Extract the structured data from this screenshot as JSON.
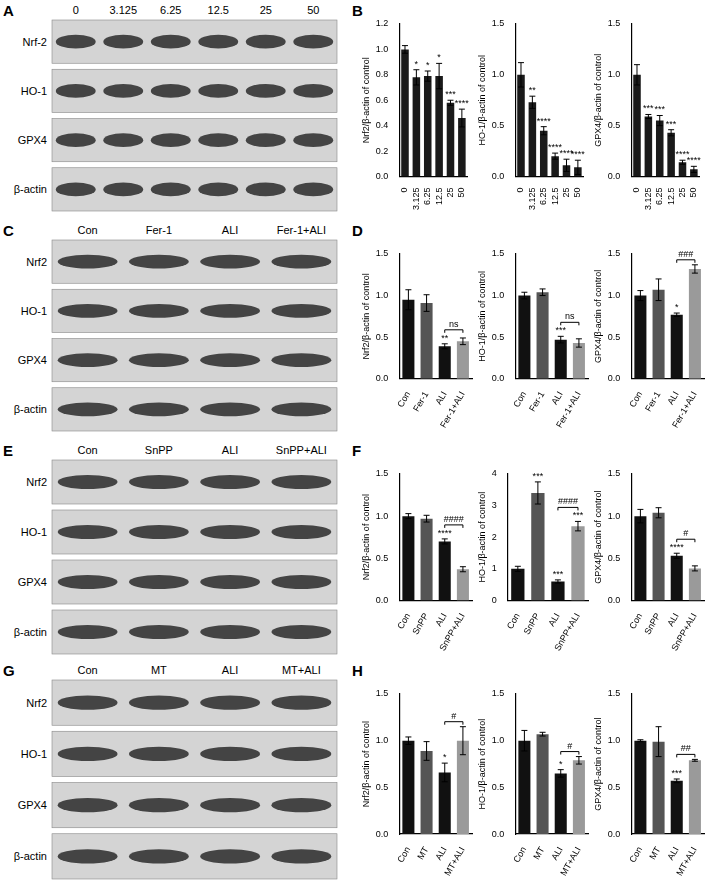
{
  "blots": [
    {
      "panel": "A",
      "lanes": [
        "0",
        "3.125",
        "6.25",
        "12.5",
        "25",
        "50"
      ],
      "proteins": [
        "Nrf-2",
        "HO-1",
        "GPX4",
        "β-actin"
      ]
    },
    {
      "panel": "C",
      "lanes": [
        "Con",
        "Fer-1",
        "ALI",
        "Fer-1+ALI"
      ],
      "proteins": [
        "Nrf2",
        "HO-1",
        "GPX4",
        "β-actin"
      ]
    },
    {
      "panel": "E",
      "lanes": [
        "Con",
        "SnPP",
        "ALI",
        "SnPP+ALI"
      ],
      "proteins": [
        "Nrf2",
        "HO-1",
        "GPX4",
        "β-actin"
      ]
    },
    {
      "panel": "G",
      "lanes": [
        "Con",
        "MT",
        "ALI",
        "MT+ALI"
      ],
      "proteins": [
        "Nrf2",
        "HO-1",
        "GPX4",
        "β-actin"
      ]
    }
  ],
  "chart_data": [
    {
      "panel": "B",
      "type": "bar",
      "ylabel": "Nrf2/β-actin of control",
      "categories": [
        "0",
        "3.125",
        "6.25",
        "12.5",
        "25",
        "50"
      ],
      "values": [
        1.0,
        0.78,
        0.79,
        0.79,
        0.58,
        0.46
      ],
      "errors": [
        0.03,
        0.06,
        0.04,
        0.1,
        0.02,
        0.07
      ],
      "significance": [
        null,
        "*",
        "*",
        "*",
        "***",
        "****"
      ],
      "colors": [
        "#1a1a1a",
        "#1a1a1a",
        "#1a1a1a",
        "#1a1a1a",
        "#1a1a1a",
        "#1a1a1a"
      ],
      "ylim": [
        0,
        1.2
      ],
      "yticks": [
        {
          "value": 0,
          "label": "0.0"
        },
        0.2,
        0.4,
        0.6,
        0.8,
        {
          "value": 1,
          "label": "1.0"
        },
        1.2
      ],
      "grid": false
    },
    {
      "type": "bar",
      "ylabel": "HO-1/β-actin of control",
      "categories": [
        "0",
        "3.125",
        "6.25",
        "12.5",
        "25",
        "50"
      ],
      "values": [
        1.0,
        0.73,
        0.45,
        0.2,
        0.11,
        0.09
      ],
      "errors": [
        0.12,
        0.06,
        0.04,
        0.03,
        0.06,
        0.07
      ],
      "significance": [
        null,
        "**",
        "****",
        "****",
        "****",
        "****"
      ],
      "colors": [
        "#1a1a1a",
        "#1a1a1a",
        "#1a1a1a",
        "#1a1a1a",
        "#1a1a1a",
        "#1a1a1a"
      ],
      "ylim": [
        0,
        1.5
      ],
      "yticks": [
        {
          "value": 0,
          "label": "0.0"
        },
        0.5,
        {
          "value": 1,
          "label": "1.0"
        },
        1.5
      ],
      "grid": false
    },
    {
      "type": "bar",
      "ylabel": "GPX4/β-actin of control",
      "categories": [
        "0",
        "3.125",
        "6.25",
        "12.5",
        "25",
        "50"
      ],
      "values": [
        1.0,
        0.59,
        0.55,
        0.43,
        0.14,
        0.07
      ],
      "errors": [
        0.1,
        0.02,
        0.05,
        0.03,
        0.02,
        0.03
      ],
      "significance": [
        null,
        "***",
        "***",
        "***",
        "****",
        "****"
      ],
      "colors": [
        "#1a1a1a",
        "#1a1a1a",
        "#1a1a1a",
        "#1a1a1a",
        "#1a1a1a",
        "#1a1a1a"
      ],
      "ylim": [
        0,
        1.5
      ],
      "yticks": [
        {
          "value": 0,
          "label": "0.0"
        },
        0.5,
        {
          "value": 1,
          "label": "1.0"
        },
        1.5
      ],
      "grid": false
    },
    {
      "panel": "D",
      "type": "bar",
      "ylabel": "Nrf2/β-actin of control",
      "categories": [
        "Con",
        "Fer-1",
        "ALI",
        "Fer-1+ALI"
      ],
      "values": [
        0.95,
        0.91,
        0.39,
        0.45
      ],
      "errors": [
        0.12,
        0.1,
        0.03,
        0.04
      ],
      "significance": [
        null,
        null,
        "**",
        null
      ],
      "comparisons": [
        {
          "from": 2,
          "to": 3,
          "label": "ns"
        }
      ],
      "colors": [
        "#111111",
        "#555555",
        "#111111",
        "#9a9a9a"
      ],
      "ylim": [
        0,
        1.5
      ],
      "yticks": [
        {
          "value": 0,
          "label": "0.0"
        },
        0.5,
        {
          "value": 1,
          "label": "1.0"
        },
        1.5
      ],
      "grid": false
    },
    {
      "type": "bar",
      "ylabel": "HO-1/β-actin of control",
      "categories": [
        "Con",
        "Fer-1",
        "ALI",
        "Fer-1+ALI"
      ],
      "values": [
        1.0,
        1.04,
        0.47,
        0.43
      ],
      "errors": [
        0.04,
        0.04,
        0.04,
        0.05
      ],
      "significance": [
        null,
        null,
        "***",
        null
      ],
      "comparisons": [
        {
          "from": 2,
          "to": 3,
          "label": "ns"
        }
      ],
      "colors": [
        "#111111",
        "#555555",
        "#111111",
        "#9a9a9a"
      ],
      "ylim": [
        0,
        1.5
      ],
      "yticks": [
        {
          "value": 0,
          "label": "0.0"
        },
        0.5,
        {
          "value": 1,
          "label": "1.0"
        },
        1.5
      ],
      "grid": false
    },
    {
      "type": "bar",
      "ylabel": "GPX4/β-actin of control",
      "categories": [
        "Con",
        "Fer-1",
        "ALI",
        "Fer-1+ALI"
      ],
      "values": [
        1.0,
        1.07,
        0.77,
        1.32
      ],
      "errors": [
        0.06,
        0.13,
        0.02,
        0.05
      ],
      "significance": [
        null,
        null,
        "*",
        null
      ],
      "comparisons": [
        {
          "from": 2,
          "to": 3,
          "label": "###"
        }
      ],
      "colors": [
        "#111111",
        "#555555",
        "#111111",
        "#9a9a9a"
      ],
      "ylim": [
        0,
        1.5
      ],
      "yticks": [
        {
          "value": 0,
          "label": "0.0"
        },
        0.5,
        {
          "value": 1,
          "label": "1.0"
        },
        1.5
      ],
      "grid": false
    },
    {
      "panel": "F",
      "type": "bar",
      "ylabel": "Nrf2/β-actin of control",
      "categories": [
        "Con",
        "SnPP",
        "ALI",
        "SnPP+ALI"
      ],
      "values": [
        1.0,
        0.97,
        0.7,
        0.37
      ],
      "errors": [
        0.03,
        0.04,
        0.03,
        0.03
      ],
      "significance": [
        null,
        null,
        "****",
        null
      ],
      "comparisons": [
        {
          "from": 2,
          "to": 3,
          "label": "####"
        }
      ],
      "colors": [
        "#111111",
        "#555555",
        "#111111",
        "#9a9a9a"
      ],
      "ylim": [
        0,
        1.5
      ],
      "yticks": [
        {
          "value": 0,
          "label": "0.0"
        },
        0.5,
        {
          "value": 1,
          "label": "1.0"
        },
        1.5
      ],
      "grid": false
    },
    {
      "type": "bar",
      "ylabel": "HO-1/β-actin of control",
      "categories": [
        "Con",
        "SnPP",
        "ALI",
        "SnPP+ALI"
      ],
      "values": [
        1.0,
        3.4,
        0.6,
        2.35
      ],
      "errors": [
        0.08,
        0.35,
        0.05,
        0.15
      ],
      "significance": [
        null,
        "***",
        "***",
        "***"
      ],
      "comparisons": [
        {
          "from": 2,
          "to": 3,
          "label": "####"
        }
      ],
      "colors": [
        "#111111",
        "#555555",
        "#111111",
        "#9a9a9a"
      ],
      "ylim": [
        0,
        4
      ],
      "yticks": [
        0,
        1,
        2,
        3,
        4
      ],
      "grid": false
    },
    {
      "type": "bar",
      "ylabel": "GPX4/β-actin of control",
      "categories": [
        "Con",
        "SnPP",
        "ALI",
        "SnPP+ALI"
      ],
      "values": [
        1.0,
        1.04,
        0.53,
        0.38
      ],
      "errors": [
        0.08,
        0.06,
        0.03,
        0.03
      ],
      "significance": [
        null,
        null,
        "****",
        null
      ],
      "comparisons": [
        {
          "from": 2,
          "to": 3,
          "label": "#"
        }
      ],
      "colors": [
        "#111111",
        "#555555",
        "#111111",
        "#9a9a9a"
      ],
      "ylim": [
        0,
        1.5
      ],
      "yticks": [
        {
          "value": 0,
          "label": "0.0"
        },
        0.5,
        {
          "value": 1,
          "label": "1.0"
        },
        1.5
      ],
      "grid": false
    },
    {
      "panel": "H",
      "type": "bar",
      "ylabel": "Nrf2/β-actin of control",
      "categories": [
        "Con",
        "MT",
        "ALI",
        "MT+ALI"
      ],
      "values": [
        1.0,
        0.89,
        0.66,
        1.0
      ],
      "errors": [
        0.04,
        0.1,
        0.1,
        0.15
      ],
      "significance": [
        null,
        null,
        "*",
        null
      ],
      "comparisons": [
        {
          "from": 2,
          "to": 3,
          "label": "#"
        }
      ],
      "colors": [
        "#111111",
        "#555555",
        "#111111",
        "#9a9a9a"
      ],
      "ylim": [
        0,
        1.5
      ],
      "yticks": [
        {
          "value": 0,
          "label": "0.0"
        },
        0.5,
        {
          "value": 1,
          "label": "1.0"
        },
        1.5
      ],
      "grid": false
    },
    {
      "type": "bar",
      "ylabel": "HO-1/β-actin of control",
      "categories": [
        "Con",
        "MT",
        "ALI",
        "MT+ALI"
      ],
      "values": [
        1.0,
        1.07,
        0.65,
        0.79
      ],
      "errors": [
        0.11,
        0.02,
        0.04,
        0.04
      ],
      "significance": [
        null,
        null,
        "*",
        null
      ],
      "comparisons": [
        {
          "from": 2,
          "to": 3,
          "label": "#"
        }
      ],
      "colors": [
        "#111111",
        "#555555",
        "#111111",
        "#9a9a9a"
      ],
      "ylim": [
        0,
        1.5
      ],
      "yticks": [
        {
          "value": 0,
          "label": "0.0"
        },
        0.5,
        {
          "value": 1,
          "label": "1.0"
        },
        1.5
      ],
      "grid": false
    },
    {
      "type": "bar",
      "ylabel": "GPX4/β-actin of control",
      "categories": [
        "Con",
        "MT",
        "ALI",
        "MT+ALI"
      ],
      "values": [
        1.0,
        0.99,
        0.57,
        0.79
      ],
      "errors": [
        0.01,
        0.16,
        0.02,
        0.01
      ],
      "significance": [
        null,
        null,
        "***",
        null
      ],
      "comparisons": [
        {
          "from": 2,
          "to": 3,
          "label": "##"
        }
      ],
      "colors": [
        "#111111",
        "#555555",
        "#111111",
        "#9a9a9a"
      ],
      "ylim": [
        0,
        1.5
      ],
      "yticks": [
        {
          "value": 0,
          "label": "0.0"
        },
        0.5,
        {
          "value": 1,
          "label": "1.0"
        },
        1.5
      ],
      "grid": false
    }
  ]
}
